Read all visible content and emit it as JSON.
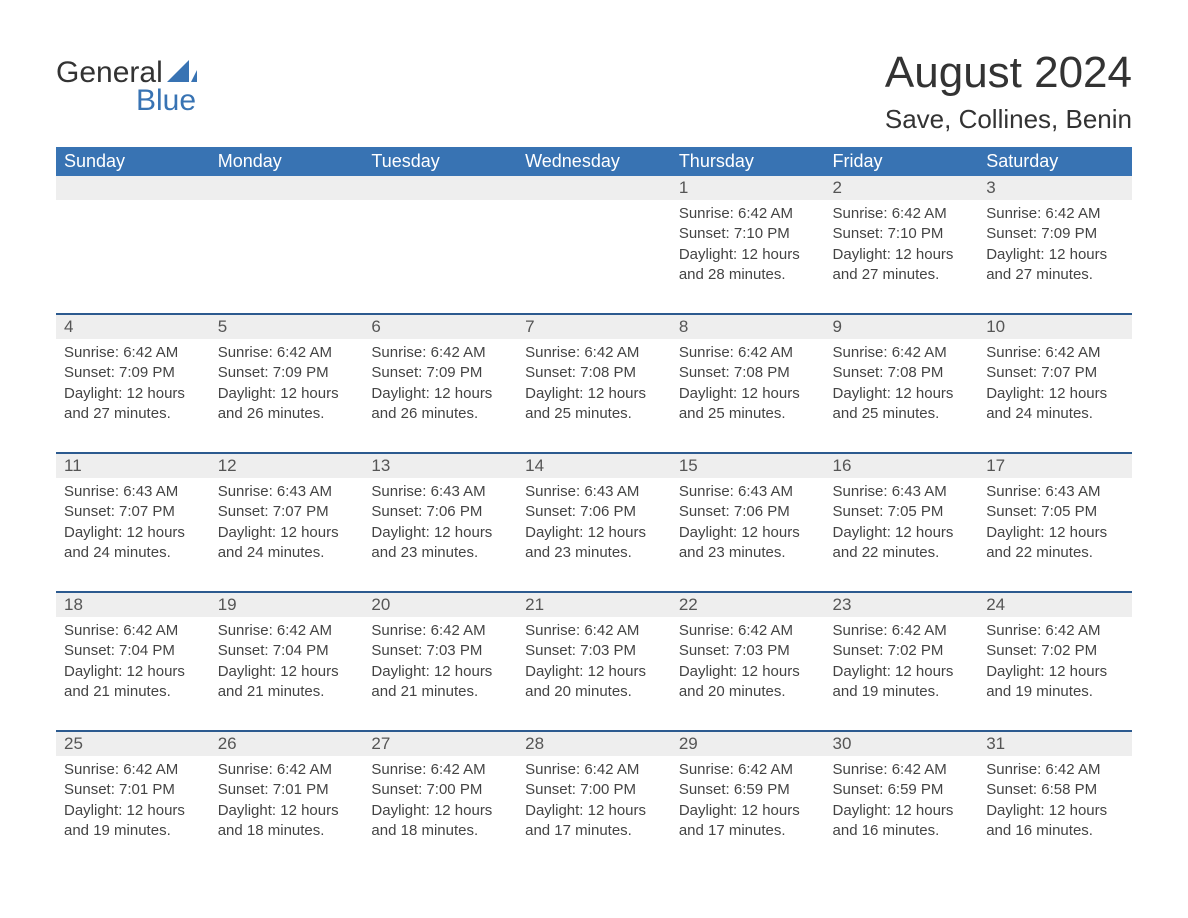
{
  "logo": {
    "word1": "General",
    "word2": "Blue"
  },
  "title": "August 2024",
  "location": "Save, Collines, Benin",
  "colors": {
    "accent": "#3873b3",
    "accent_border": "#2c5a8f",
    "daynum_bg": "#eeeeee",
    "text": "#333333"
  },
  "layout": {
    "type": "calendar-month",
    "columns": 7,
    "rows": 5,
    "start_day_index": 4
  },
  "weekdays": [
    "Sunday",
    "Monday",
    "Tuesday",
    "Wednesday",
    "Thursday",
    "Friday",
    "Saturday"
  ],
  "days": [
    {
      "n": 1,
      "sunrise": "6:42 AM",
      "sunset": "7:10 PM",
      "daylight": "12 hours and 28 minutes."
    },
    {
      "n": 2,
      "sunrise": "6:42 AM",
      "sunset": "7:10 PM",
      "daylight": "12 hours and 27 minutes."
    },
    {
      "n": 3,
      "sunrise": "6:42 AM",
      "sunset": "7:09 PM",
      "daylight": "12 hours and 27 minutes."
    },
    {
      "n": 4,
      "sunrise": "6:42 AM",
      "sunset": "7:09 PM",
      "daylight": "12 hours and 27 minutes."
    },
    {
      "n": 5,
      "sunrise": "6:42 AM",
      "sunset": "7:09 PM",
      "daylight": "12 hours and 26 minutes."
    },
    {
      "n": 6,
      "sunrise": "6:42 AM",
      "sunset": "7:09 PM",
      "daylight": "12 hours and 26 minutes."
    },
    {
      "n": 7,
      "sunrise": "6:42 AM",
      "sunset": "7:08 PM",
      "daylight": "12 hours and 25 minutes."
    },
    {
      "n": 8,
      "sunrise": "6:42 AM",
      "sunset": "7:08 PM",
      "daylight": "12 hours and 25 minutes."
    },
    {
      "n": 9,
      "sunrise": "6:42 AM",
      "sunset": "7:08 PM",
      "daylight": "12 hours and 25 minutes."
    },
    {
      "n": 10,
      "sunrise": "6:42 AM",
      "sunset": "7:07 PM",
      "daylight": "12 hours and 24 minutes."
    },
    {
      "n": 11,
      "sunrise": "6:43 AM",
      "sunset": "7:07 PM",
      "daylight": "12 hours and 24 minutes."
    },
    {
      "n": 12,
      "sunrise": "6:43 AM",
      "sunset": "7:07 PM",
      "daylight": "12 hours and 24 minutes."
    },
    {
      "n": 13,
      "sunrise": "6:43 AM",
      "sunset": "7:06 PM",
      "daylight": "12 hours and 23 minutes."
    },
    {
      "n": 14,
      "sunrise": "6:43 AM",
      "sunset": "7:06 PM",
      "daylight": "12 hours and 23 minutes."
    },
    {
      "n": 15,
      "sunrise": "6:43 AM",
      "sunset": "7:06 PM",
      "daylight": "12 hours and 23 minutes."
    },
    {
      "n": 16,
      "sunrise": "6:43 AM",
      "sunset": "7:05 PM",
      "daylight": "12 hours and 22 minutes."
    },
    {
      "n": 17,
      "sunrise": "6:43 AM",
      "sunset": "7:05 PM",
      "daylight": "12 hours and 22 minutes."
    },
    {
      "n": 18,
      "sunrise": "6:42 AM",
      "sunset": "7:04 PM",
      "daylight": "12 hours and 21 minutes."
    },
    {
      "n": 19,
      "sunrise": "6:42 AM",
      "sunset": "7:04 PM",
      "daylight": "12 hours and 21 minutes."
    },
    {
      "n": 20,
      "sunrise": "6:42 AM",
      "sunset": "7:03 PM",
      "daylight": "12 hours and 21 minutes."
    },
    {
      "n": 21,
      "sunrise": "6:42 AM",
      "sunset": "7:03 PM",
      "daylight": "12 hours and 20 minutes."
    },
    {
      "n": 22,
      "sunrise": "6:42 AM",
      "sunset": "7:03 PM",
      "daylight": "12 hours and 20 minutes."
    },
    {
      "n": 23,
      "sunrise": "6:42 AM",
      "sunset": "7:02 PM",
      "daylight": "12 hours and 19 minutes."
    },
    {
      "n": 24,
      "sunrise": "6:42 AM",
      "sunset": "7:02 PM",
      "daylight": "12 hours and 19 minutes."
    },
    {
      "n": 25,
      "sunrise": "6:42 AM",
      "sunset": "7:01 PM",
      "daylight": "12 hours and 19 minutes."
    },
    {
      "n": 26,
      "sunrise": "6:42 AM",
      "sunset": "7:01 PM",
      "daylight": "12 hours and 18 minutes."
    },
    {
      "n": 27,
      "sunrise": "6:42 AM",
      "sunset": "7:00 PM",
      "daylight": "12 hours and 18 minutes."
    },
    {
      "n": 28,
      "sunrise": "6:42 AM",
      "sunset": "7:00 PM",
      "daylight": "12 hours and 17 minutes."
    },
    {
      "n": 29,
      "sunrise": "6:42 AM",
      "sunset": "6:59 PM",
      "daylight": "12 hours and 17 minutes."
    },
    {
      "n": 30,
      "sunrise": "6:42 AM",
      "sunset": "6:59 PM",
      "daylight": "12 hours and 16 minutes."
    },
    {
      "n": 31,
      "sunrise": "6:42 AM",
      "sunset": "6:58 PM",
      "daylight": "12 hours and 16 minutes."
    }
  ],
  "labels": {
    "sunrise": "Sunrise: ",
    "sunset": "Sunset: ",
    "daylight": "Daylight: "
  }
}
